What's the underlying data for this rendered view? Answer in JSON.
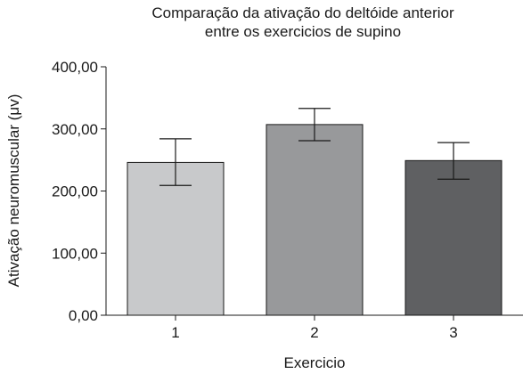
{
  "chart_data": {
    "type": "bar",
    "title_line1": "Comparação da ativação do deltóide anterior",
    "title_line2": "entre os exercicios de supino",
    "xlabel": "Exercicio",
    "ylabel": "Ativação neuromuscular (μv)",
    "categories": [
      "1",
      "2",
      "3"
    ],
    "values": [
      246,
      307,
      249
    ],
    "error_low": [
      209,
      281,
      219
    ],
    "error_high": [
      284,
      333,
      278
    ],
    "bar_colors": [
      "#c8c9cb",
      "#98999b",
      "#5f6062"
    ],
    "ylim": [
      0,
      400
    ],
    "yticks": [
      0,
      100,
      200,
      300,
      400
    ],
    "ytick_labels": [
      "0,00",
      "100,00",
      "200,00",
      "300,00",
      "400,00"
    ],
    "grid": false
  }
}
